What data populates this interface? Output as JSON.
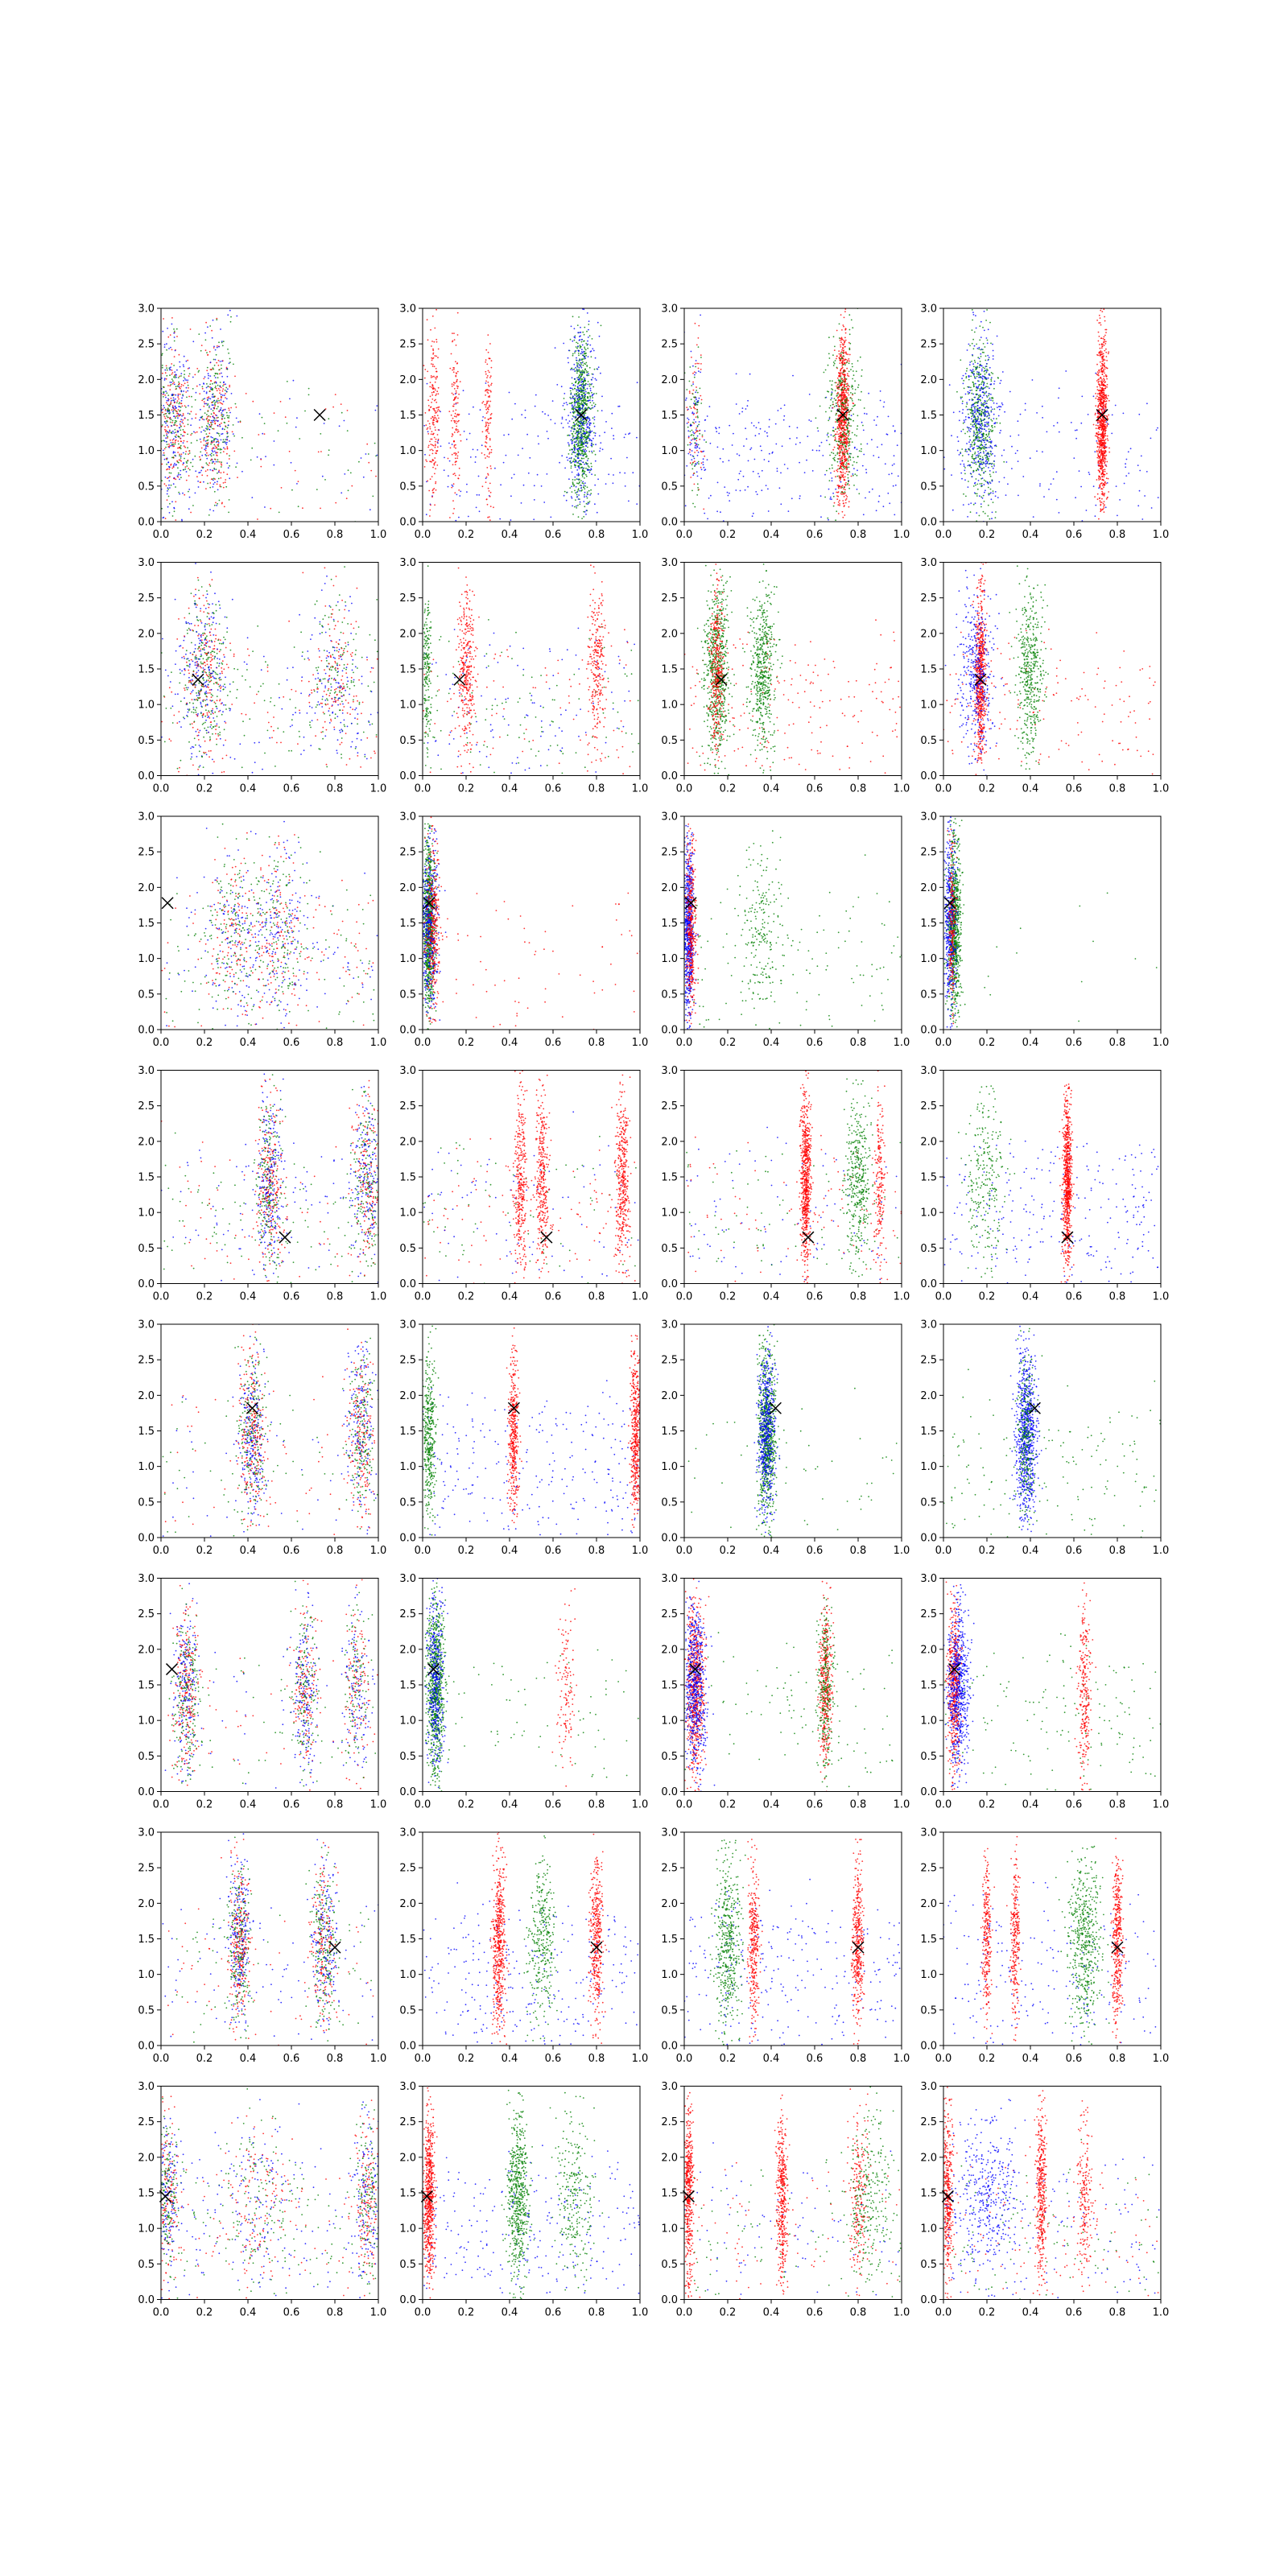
{
  "chart_data": {
    "type": "scatter",
    "layout": {
      "rows": 8,
      "cols": 4
    },
    "xlim": [
      0.0,
      1.0
    ],
    "ylim": [
      0.0,
      3.0
    ],
    "x_ticks": [
      "0.0",
      "0.2",
      "0.4",
      "0.6",
      "0.8",
      "1.0"
    ],
    "y_ticks": [
      "0.0",
      "0.5",
      "1.0",
      "1.5",
      "2.0",
      "2.5",
      "3.0"
    ],
    "series_colors": {
      "blue": "#0000ff",
      "green": "#008000",
      "red": "#ff0000"
    },
    "marker_color": "#000000",
    "marker_symbol": "x",
    "rows": [
      {
        "marker": {
          "x": 0.73,
          "y": 1.5
        },
        "panels": [
          {
            "clusters": [
              {
                "x": 0.05,
                "s": 0.05,
                "sc": "mixed",
                "d": 1.0
              },
              {
                "x": 0.25,
                "s": 0.04,
                "sc": "mixed",
                "d": 0.8
              }
            ],
            "bg": {
              "c": "mixed",
              "d": 0.3
            }
          },
          {
            "clusters": [
              {
                "x": 0.73,
                "s": 0.025,
                "sc": "green",
                "d": 1.2
              },
              {
                "x": 0.73,
                "s": 0.04,
                "sc": "blue",
                "d": 0.6
              },
              {
                "x": 0.05,
                "s": 0.015,
                "sc": "red",
                "d": 0.3
              },
              {
                "x": 0.15,
                "s": 0.01,
                "sc": "red",
                "d": 0.2
              },
              {
                "x": 0.3,
                "s": 0.01,
                "sc": "red",
                "d": 0.2
              }
            ],
            "bg": {
              "c": "blue",
              "d": 0.3
            }
          },
          {
            "clusters": [
              {
                "x": 0.73,
                "s": 0.015,
                "sc": "red",
                "d": 1.2
              },
              {
                "x": 0.73,
                "s": 0.04,
                "sc": "green",
                "d": 0.5
              },
              {
                "x": 0.05,
                "s": 0.02,
                "sc": "mixed",
                "d": 0.3
              }
            ],
            "bg": {
              "c": "blue",
              "d": 0.5
            }
          },
          {
            "clusters": [
              {
                "x": 0.73,
                "s": 0.012,
                "sc": "red",
                "d": 1.3
              },
              {
                "x": 0.17,
                "s": 0.035,
                "sc": "green",
                "d": 0.8
              },
              {
                "x": 0.17,
                "s": 0.04,
                "sc": "blue",
                "d": 0.6
              }
            ],
            "bg": {
              "c": "blue",
              "d": 0.3
            }
          }
        ]
      },
      {
        "marker": {
          "x": 0.17,
          "y": 1.35
        },
        "panels": [
          {
            "clusters": [
              {
                "x": 0.2,
                "s": 0.05,
                "sc": "mixed",
                "d": 0.9
              },
              {
                "x": 0.8,
                "s": 0.06,
                "sc": "mixed",
                "d": 0.5
              }
            ],
            "bg": {
              "c": "mixed",
              "d": 0.6
            }
          },
          {
            "clusters": [
              {
                "x": 0.02,
                "s": 0.01,
                "sc": "green",
                "d": 0.3
              },
              {
                "x": 0.2,
                "s": 0.02,
                "sc": "red",
                "d": 0.5
              },
              {
                "x": 0.8,
                "s": 0.02,
                "sc": "red",
                "d": 0.4
              }
            ],
            "bg": {
              "c": "mixed",
              "d": 0.6
            }
          },
          {
            "clusters": [
              {
                "x": 0.15,
                "s": 0.03,
                "sc": "green",
                "d": 1.0
              },
              {
                "x": 0.36,
                "s": 0.03,
                "sc": "green",
                "d": 0.8
              },
              {
                "x": 0.15,
                "s": 0.015,
                "sc": "red",
                "d": 0.5
              }
            ],
            "bg": {
              "c": "red",
              "d": 0.4
            }
          },
          {
            "clusters": [
              {
                "x": 0.17,
                "s": 0.012,
                "sc": "red",
                "d": 1.0
              },
              {
                "x": 0.4,
                "s": 0.03,
                "sc": "green",
                "d": 0.7
              },
              {
                "x": 0.15,
                "s": 0.04,
                "sc": "blue",
                "d": 0.6
              }
            ],
            "bg": {
              "c": "red",
              "d": 0.3
            }
          }
        ]
      },
      {
        "marker": {
          "x": 0.03,
          "y": 1.78
        },
        "panels": [
          {
            "clusters": [
              {
                "x": 0.35,
                "s": 0.07,
                "sc": "mixed",
                "d": 0.6
              },
              {
                "x": 0.55,
                "s": 0.06,
                "sc": "mixed",
                "d": 0.6
              }
            ],
            "bg": {
              "c": "mixed",
              "d": 0.6
            }
          },
          {
            "clusters": [
              {
                "x": 0.03,
                "s": 0.012,
                "sc": "green",
                "d": 1.3
              },
              {
                "x": 0.03,
                "s": 0.02,
                "sc": "blue",
                "d": 0.7
              },
              {
                "x": 0.05,
                "s": 0.015,
                "sc": "red",
                "d": 0.5
              }
            ],
            "bg": {
              "c": "red",
              "d": 0.15
            }
          },
          {
            "clusters": [
              {
                "x": 0.02,
                "s": 0.012,
                "sc": "blue",
                "d": 1.1
              },
              {
                "x": 0.03,
                "s": 0.012,
                "sc": "red",
                "d": 0.6
              },
              {
                "x": 0.35,
                "s": 0.05,
                "sc": "green",
                "d": 0.3
              }
            ],
            "bg": {
              "c": "green",
              "d": 0.25
            }
          },
          {
            "clusters": [
              {
                "x": 0.05,
                "s": 0.015,
                "sc": "green",
                "d": 1.3
              },
              {
                "x": 0.03,
                "s": 0.015,
                "sc": "blue",
                "d": 0.7
              },
              {
                "x": 0.04,
                "s": 0.008,
                "sc": "red",
                "d": 0.3
              }
            ],
            "bg": {
              "c": "green",
              "d": 0.03
            }
          }
        ]
      },
      {
        "marker": {
          "x": 0.57,
          "y": 0.65
        },
        "panels": [
          {
            "clusters": [
              {
                "x": 0.5,
                "s": 0.03,
                "sc": "mixed",
                "d": 1.0
              },
              {
                "x": 0.95,
                "s": 0.04,
                "sc": "mixed",
                "d": 0.8
              }
            ],
            "bg": {
              "c": "mixed",
              "d": 0.5
            }
          },
          {
            "clusters": [
              {
                "x": 0.45,
                "s": 0.015,
                "sc": "red",
                "d": 0.5
              },
              {
                "x": 0.55,
                "s": 0.015,
                "sc": "red",
                "d": 0.5
              },
              {
                "x": 0.92,
                "s": 0.015,
                "sc": "red",
                "d": 0.6
              }
            ],
            "bg": {
              "c": "mixed",
              "d": 0.5
            }
          },
          {
            "clusters": [
              {
                "x": 0.56,
                "s": 0.012,
                "sc": "red",
                "d": 1.0
              },
              {
                "x": 0.8,
                "s": 0.03,
                "sc": "green",
                "d": 0.6
              },
              {
                "x": 0.9,
                "s": 0.012,
                "sc": "red",
                "d": 0.3
              }
            ],
            "bg": {
              "c": "mixed",
              "d": 0.5
            }
          },
          {
            "clusters": [
              {
                "x": 0.57,
                "s": 0.01,
                "sc": "red",
                "d": 1.1
              },
              {
                "x": 0.2,
                "s": 0.05,
                "sc": "green",
                "d": 0.4
              }
            ],
            "bg": {
              "c": "blue",
              "d": 0.5
            }
          }
        ]
      },
      {
        "marker": {
          "x": 0.42,
          "y": 1.82
        },
        "panels": [
          {
            "clusters": [
              {
                "x": 0.42,
                "s": 0.03,
                "sc": "mixed",
                "d": 1.0
              },
              {
                "x": 0.92,
                "s": 0.03,
                "sc": "mixed",
                "d": 0.8
              }
            ],
            "bg": {
              "c": "mixed",
              "d": 0.3
            }
          },
          {
            "clusters": [
              {
                "x": 0.03,
                "s": 0.015,
                "sc": "green",
                "d": 0.6
              },
              {
                "x": 0.42,
                "s": 0.012,
                "sc": "red",
                "d": 0.6
              },
              {
                "x": 0.98,
                "s": 0.012,
                "sc": "red",
                "d": 0.7
              }
            ],
            "bg": {
              "c": "blue",
              "d": 0.5
            }
          },
          {
            "clusters": [
              {
                "x": 0.38,
                "s": 0.02,
                "sc": "green",
                "d": 1.2
              },
              {
                "x": 0.38,
                "s": 0.02,
                "sc": "blue",
                "d": 0.8
              }
            ],
            "bg": {
              "c": "green",
              "d": 0.1
            }
          },
          {
            "clusters": [
              {
                "x": 0.38,
                "s": 0.025,
                "sc": "blue",
                "d": 1.2
              },
              {
                "x": 0.38,
                "s": 0.02,
                "sc": "green",
                "d": 0.4
              }
            ],
            "bg": {
              "c": "green",
              "d": 0.3
            }
          }
        ]
      },
      {
        "marker": {
          "x": 0.05,
          "y": 1.72
        },
        "panels": [
          {
            "clusters": [
              {
                "x": 0.12,
                "s": 0.03,
                "sc": "mixed",
                "d": 0.9
              },
              {
                "x": 0.66,
                "s": 0.03,
                "sc": "mixed",
                "d": 0.7
              },
              {
                "x": 0.9,
                "s": 0.03,
                "sc": "mixed",
                "d": 0.5
              }
            ],
            "bg": {
              "c": "mixed",
              "d": 0.3
            }
          },
          {
            "clusters": [
              {
                "x": 0.06,
                "s": 0.02,
                "sc": "green",
                "d": 1.2
              },
              {
                "x": 0.06,
                "s": 0.02,
                "sc": "blue",
                "d": 0.6
              },
              {
                "x": 0.66,
                "s": 0.02,
                "sc": "red",
                "d": 0.2
              }
            ],
            "bg": {
              "c": "green",
              "d": 0.15
            }
          },
          {
            "clusters": [
              {
                "x": 0.05,
                "s": 0.02,
                "sc": "red",
                "d": 1.0
              },
              {
                "x": 0.05,
                "s": 0.025,
                "sc": "blue",
                "d": 0.9
              },
              {
                "x": 0.65,
                "s": 0.015,
                "sc": "red",
                "d": 0.6
              },
              {
                "x": 0.65,
                "s": 0.02,
                "sc": "green",
                "d": 0.4
              }
            ],
            "bg": {
              "c": "green",
              "d": 0.2
            }
          },
          {
            "clusters": [
              {
                "x": 0.05,
                "s": 0.015,
                "sc": "red",
                "d": 0.8
              },
              {
                "x": 0.07,
                "s": 0.025,
                "sc": "blue",
                "d": 1.0
              },
              {
                "x": 0.65,
                "s": 0.015,
                "sc": "red",
                "d": 0.4
              }
            ],
            "bg": {
              "c": "green",
              "d": 0.3
            }
          }
        ]
      },
      {
        "marker": {
          "x": 0.8,
          "y": 1.38
        },
        "panels": [
          {
            "clusters": [
              {
                "x": 0.36,
                "s": 0.025,
                "sc": "mixed",
                "d": 1.0
              },
              {
                "x": 0.75,
                "s": 0.03,
                "sc": "mixed",
                "d": 0.8
              }
            ],
            "bg": {
              "c": "mixed",
              "d": 0.4
            }
          },
          {
            "clusters": [
              {
                "x": 0.35,
                "s": 0.015,
                "sc": "red",
                "d": 0.8
              },
              {
                "x": 0.55,
                "s": 0.03,
                "sc": "green",
                "d": 0.5
              },
              {
                "x": 0.8,
                "s": 0.015,
                "sc": "red",
                "d": 0.6
              }
            ],
            "bg": {
              "c": "blue",
              "d": 0.5
            }
          },
          {
            "clusters": [
              {
                "x": 0.2,
                "s": 0.03,
                "sc": "green",
                "d": 0.7
              },
              {
                "x": 0.32,
                "s": 0.012,
                "sc": "red",
                "d": 0.5
              },
              {
                "x": 0.8,
                "s": 0.012,
                "sc": "red",
                "d": 0.6
              }
            ],
            "bg": {
              "c": "blue",
              "d": 0.5
            }
          },
          {
            "clusters": [
              {
                "x": 0.2,
                "s": 0.01,
                "sc": "red",
                "d": 0.4
              },
              {
                "x": 0.33,
                "s": 0.01,
                "sc": "red",
                "d": 0.4
              },
              {
                "x": 0.65,
                "s": 0.04,
                "sc": "green",
                "d": 0.8
              },
              {
                "x": 0.8,
                "s": 0.012,
                "sc": "red",
                "d": 0.6
              }
            ],
            "bg": {
              "c": "blue",
              "d": 0.4
            }
          }
        ]
      },
      {
        "marker": {
          "x": 0.02,
          "y": 1.45
        },
        "panels": [
          {
            "clusters": [
              {
                "x": 0.03,
                "s": 0.03,
                "sc": "mixed",
                "d": 0.7
              },
              {
                "x": 0.45,
                "s": 0.08,
                "sc": "mixed",
                "d": 0.5
              },
              {
                "x": 0.95,
                "s": 0.03,
                "sc": "mixed",
                "d": 0.6
              }
            ],
            "bg": {
              "c": "mixed",
              "d": 0.6
            }
          },
          {
            "clusters": [
              {
                "x": 0.03,
                "s": 0.012,
                "sc": "red",
                "d": 1.0
              },
              {
                "x": 0.44,
                "s": 0.025,
                "sc": "green",
                "d": 0.9
              },
              {
                "x": 0.7,
                "s": 0.04,
                "sc": "green",
                "d": 0.4
              }
            ],
            "bg": {
              "c": "blue",
              "d": 0.5
            }
          },
          {
            "clusters": [
              {
                "x": 0.02,
                "s": 0.012,
                "sc": "red",
                "d": 0.7
              },
              {
                "x": 0.45,
                "s": 0.012,
                "sc": "red",
                "d": 0.6
              },
              {
                "x": 0.8,
                "s": 0.02,
                "sc": "red",
                "d": 0.3
              },
              {
                "x": 0.85,
                "s": 0.05,
                "sc": "green",
                "d": 0.4
              }
            ],
            "bg": {
              "c": "mixed",
              "d": 0.5
            }
          },
          {
            "clusters": [
              {
                "x": 0.02,
                "s": 0.012,
                "sc": "red",
                "d": 0.6
              },
              {
                "x": 0.45,
                "s": 0.012,
                "sc": "red",
                "d": 0.6
              },
              {
                "x": 0.65,
                "s": 0.02,
                "sc": "red",
                "d": 0.3
              },
              {
                "x": 0.2,
                "s": 0.08,
                "sc": "blue",
                "d": 0.6
              }
            ],
            "bg": {
              "c": "mixed",
              "d": 0.6
            }
          }
        ]
      }
    ]
  }
}
